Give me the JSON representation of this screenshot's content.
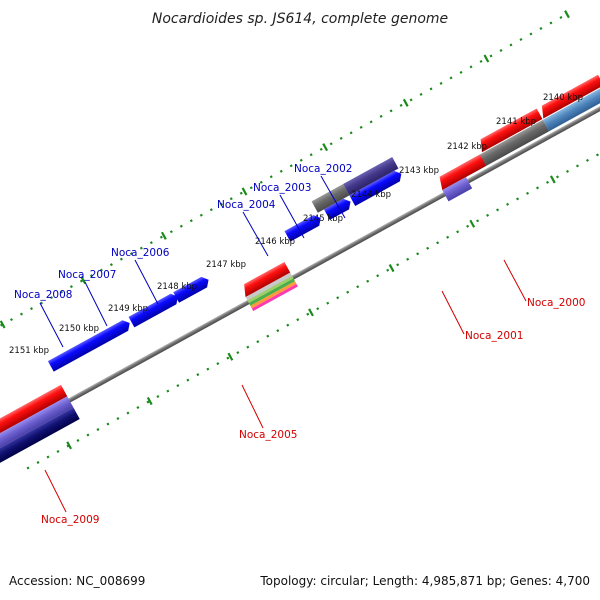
{
  "title": "Nocardioides sp. JS614, complete genome",
  "footer": {
    "accession": "Accession: NC_008699",
    "summary": "Topology: circular; Length: 4,985,871 bp; Genes: 4,700"
  },
  "ticks": [
    "2140 kbp",
    "2141 kbp",
    "2142 kbp",
    "2143 kbp",
    "2144 kbp",
    "2145 kbp",
    "2146 kbp",
    "2147 kbp",
    "2148 kbp",
    "2149 kbp",
    "2150 kbp",
    "2151 kbp"
  ],
  "genes": [
    {
      "label": "Noca_2000",
      "strand": "reverse",
      "color": "#d40000"
    },
    {
      "label": "Noca_2001",
      "strand": "reverse",
      "color": "#d40000"
    },
    {
      "label": "Noca_2002",
      "strand": "forward",
      "color": "#0000c0"
    },
    {
      "label": "Noca_2003",
      "strand": "forward",
      "color": "#0000c0"
    },
    {
      "label": "Noca_2004",
      "strand": "forward",
      "color": "#0000c0"
    },
    {
      "label": "Noca_2005",
      "strand": "reverse",
      "color": "#d40000"
    },
    {
      "label": "Noca_2006",
      "strand": "forward",
      "color": "#0000c0"
    },
    {
      "label": "Noca_2007",
      "strand": "forward",
      "color": "#0000c0"
    },
    {
      "label": "Noca_2008",
      "strand": "forward",
      "color": "#0000c0"
    },
    {
      "label": "Noca_2009",
      "strand": "reverse",
      "color": "#d40000"
    }
  ],
  "colors": {
    "backbone": "#7a7a7a",
    "tick_ring": "#1a8a1a",
    "forward_gene": "#0000ee",
    "reverse_gene": "#ee0000",
    "forward_label": "#0000c0",
    "reverse_label": "#d40000"
  }
}
